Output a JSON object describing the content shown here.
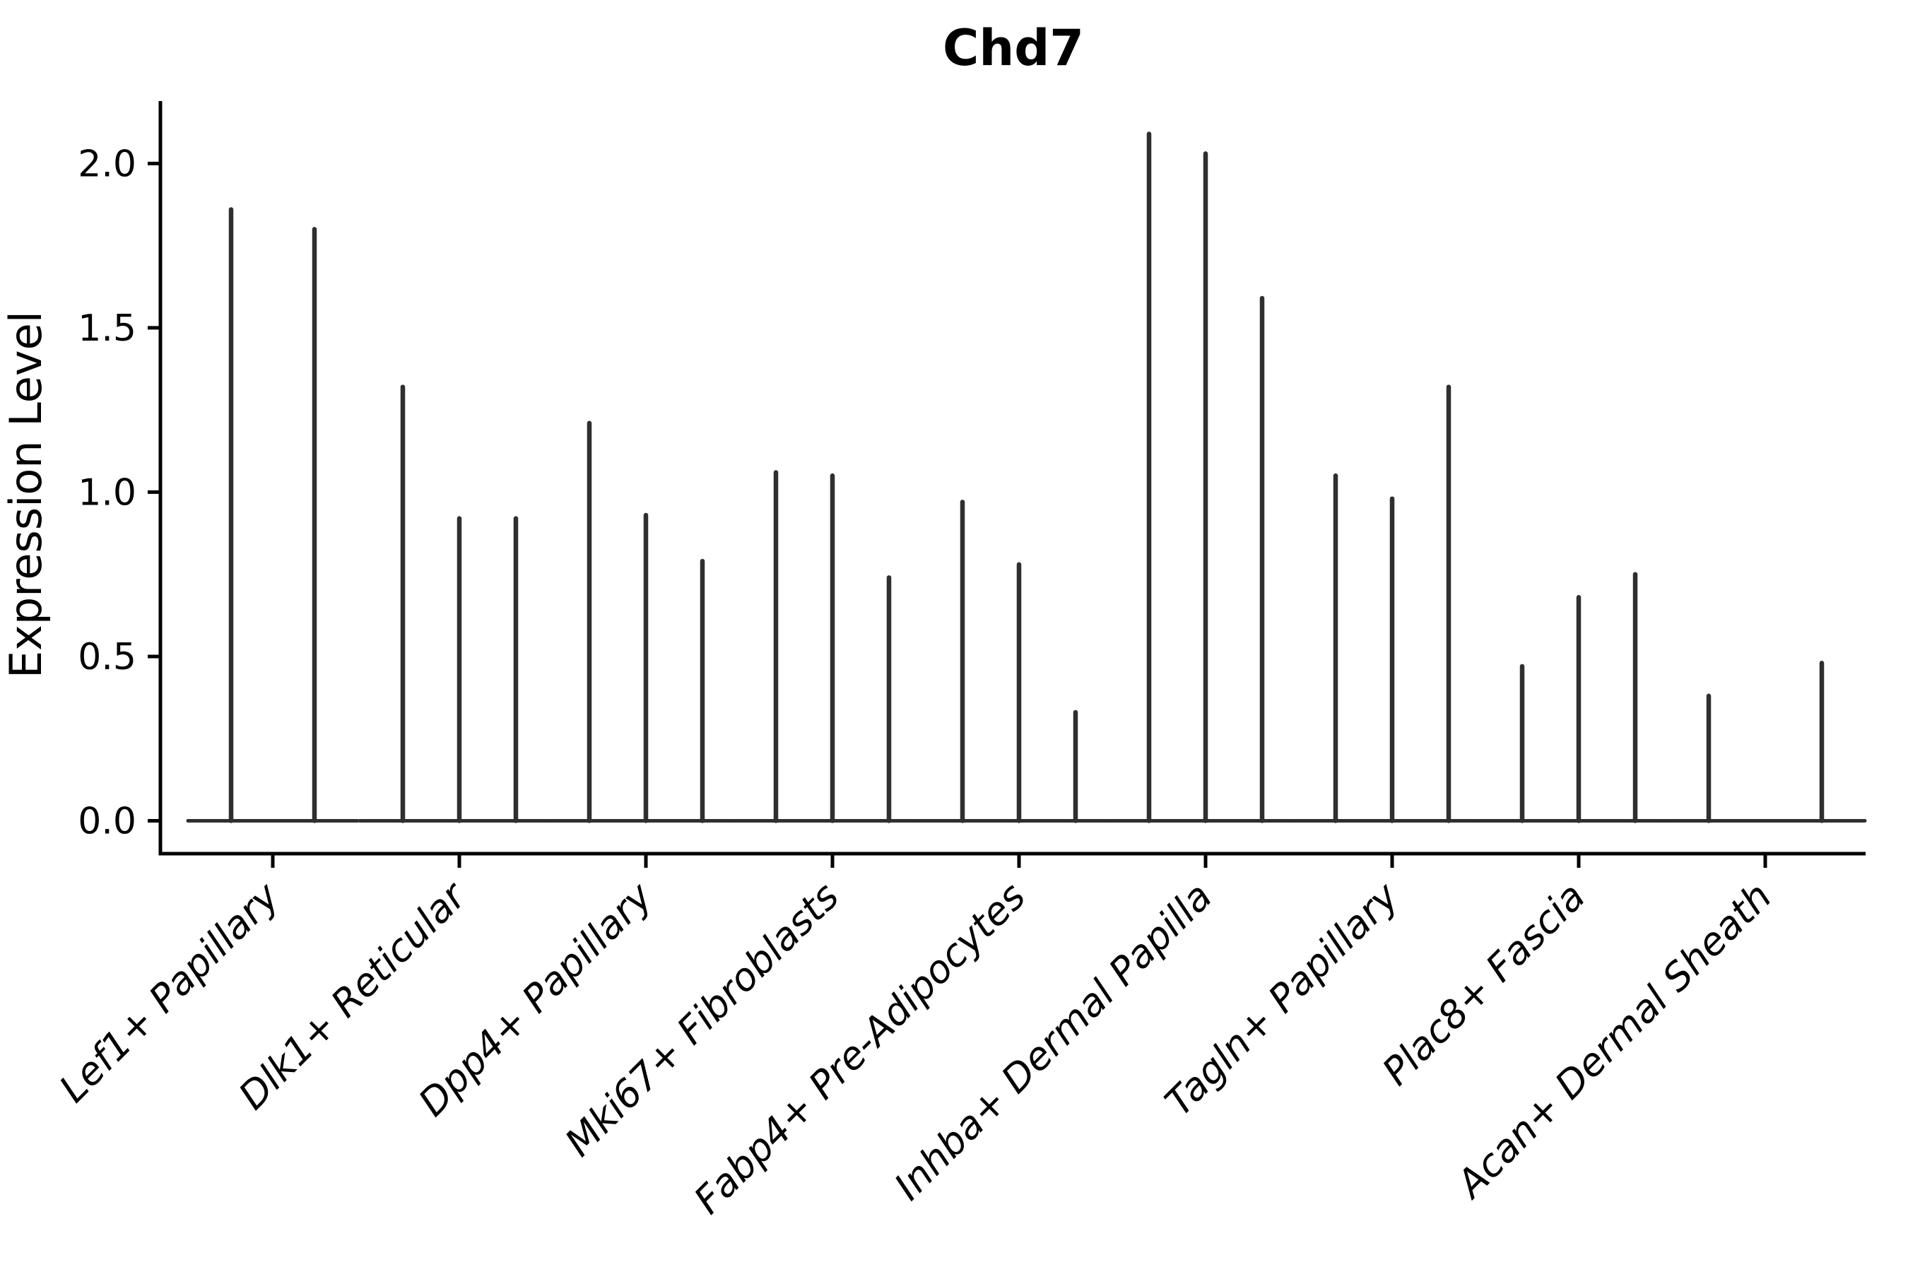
{
  "figure": {
    "background": "#ffffff"
  },
  "chart_data": {
    "type": "violin",
    "title": "Chd7",
    "xlabel": "",
    "ylabel": "Expression Level",
    "ylim": [
      -0.1,
      2.19
    ],
    "yticks": [
      {
        "label": "0.0",
        "value": 0.0
      },
      {
        "label": "0.5",
        "value": 0.5
      },
      {
        "label": "1.0",
        "value": 1.0
      },
      {
        "label": "1.5",
        "value": 1.5
      },
      {
        "label": "2.0",
        "value": 2.0
      }
    ],
    "grid": false,
    "legend_position": "none",
    "categories": [
      "Lef1+ Papillary",
      "Dlk1+ Reticular",
      "Dpp4+ Papillary",
      "Mki67+ Fibroblasts",
      "Fabp4+ Pre-Adipocytes",
      "Inhba+ Dermal Papilla",
      "Tagln+ Papillary",
      "Plac8+ Fascia",
      "Acan+ Dermal Sheath"
    ],
    "violins": [
      {
        "category": "Lef1+ Papillary",
        "offsets": [
          -59,
          59
        ],
        "maxima": [
          1.86,
          1.8
        ]
      },
      {
        "category": "Dlk1+ Reticular",
        "offsets": [
          -80,
          0,
          80
        ],
        "maxima": [
          1.32,
          0.92,
          0.92
        ]
      },
      {
        "category": "Dpp4+ Papillary",
        "offsets": [
          -80,
          0,
          80
        ],
        "maxima": [
          1.21,
          0.93,
          0.79
        ]
      },
      {
        "category": "Mki67+ Fibroblasts",
        "offsets": [
          -80,
          0,
          80
        ],
        "maxima": [
          1.06,
          1.05,
          0.74
        ]
      },
      {
        "category": "Fabp4+ Pre-Adipocytes",
        "offsets": [
          -80,
          0,
          80
        ],
        "maxima": [
          0.97,
          0.78,
          0.33
        ]
      },
      {
        "category": "Inhba+ Dermal Papilla",
        "offsets": [
          -80,
          0,
          80
        ],
        "maxima": [
          2.09,
          2.03,
          1.59
        ]
      },
      {
        "category": "Tagln+ Papillary",
        "offsets": [
          -80,
          0,
          80
        ],
        "maxima": [
          1.05,
          0.98,
          1.32
        ]
      },
      {
        "category": "Plac8+ Fascia",
        "offsets": [
          -80,
          0,
          80
        ],
        "maxima": [
          0.47,
          0.68,
          0.75
        ]
      },
      {
        "category": "Acan+ Dermal Sheath",
        "offsets": [
          -80,
          0,
          80
        ],
        "maxima": [
          0.38,
          0.0,
          0.48
        ]
      }
    ],
    "colors": {
      "violin": "#2f2f2f",
      "axis": "#000000",
      "text": "#000000"
    }
  }
}
